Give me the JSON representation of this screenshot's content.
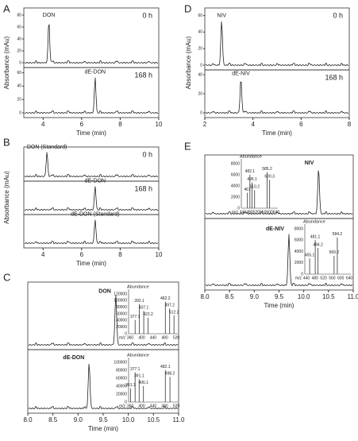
{
  "panels": [
    {
      "label": "A",
      "y_label": "Absorbance (mAu)",
      "x_label": "Time (min)",
      "x_ticks": [
        "4",
        "6",
        "8",
        "10"
      ],
      "traces": [
        {
          "time": "0 h",
          "peak": "DON",
          "y_ticks": [
            "0",
            "20",
            "40",
            "60",
            "80"
          ]
        },
        {
          "time": "168 h",
          "peak": "dE-DON",
          "y_ticks": [
            "0",
            "20",
            "40",
            "60"
          ]
        }
      ]
    },
    {
      "label": "B",
      "y_label": "Absorbance (mAu)",
      "x_label": "Time (min)",
      "x_ticks": [
        "4",
        "6",
        "8",
        "10"
      ],
      "traces": [
        {
          "time": "0 h",
          "peak": "DON (Standard)"
        },
        {
          "time": "168 h",
          "peak": "dE-DON"
        },
        {
          "peak": "dE-DON (Standard)"
        }
      ]
    },
    {
      "label": "C",
      "x_label": "Time (min)",
      "x_ticks": [
        "8.0",
        "8.5",
        "9.0",
        "9.5",
        "10.0",
        "10.5",
        "11.0"
      ],
      "traces": [
        {
          "peak": "DON",
          "inset": {
            "y_label": "Abundance",
            "x_label": "m/z",
            "y_ticks": [
              "0",
              "20000",
              "40000",
              "60000",
              "80000",
              "100000",
              "120000"
            ],
            "x_ticks": [
              "360",
              "400",
              "440",
              "480",
              "520"
            ],
            "peaks": [
              "377.1",
              "392.1",
              "407.1",
              "422.2",
              "482.2",
              "497.2",
              "512.2"
            ]
          }
        },
        {
          "peak": "dE-DON",
          "inset": {
            "y_label": "Abundance",
            "x_label": "m/z",
            "y_ticks": [
              "0",
              "20000",
              "40000",
              "60000",
              "80000",
              "100000"
            ],
            "x_ticks": [
              "360",
              "400",
              "440",
              "480",
              "520"
            ],
            "peaks": [
              "361.1",
              "377.1",
              "391.1",
              "406.1",
              "482.1",
              "498.2"
            ]
          }
        }
      ]
    },
    {
      "label": "D",
      "y_label": "Absorbance (mAu)",
      "x_label": "Time (min)",
      "x_ticks": [
        "2",
        "4",
        "6",
        "8"
      ],
      "traces": [
        {
          "time": "0 h",
          "peak": "NIV",
          "y_ticks": [
            "0",
            "20",
            "40",
            "60"
          ]
        },
        {
          "time": "168 h",
          "peak": "dE-NIV",
          "y_ticks": [
            "0",
            "20",
            "40"
          ]
        }
      ]
    },
    {
      "label": "E",
      "x_label": "Time (min)",
      "x_ticks": [
        "8.0",
        "8.5",
        "9.0",
        "9.5",
        "10.0",
        "10.5",
        "11.0"
      ],
      "traces": [
        {
          "peak": "NIV",
          "inset": {
            "y_label": "Abundance",
            "x_label": "m/z",
            "y_ticks": [
              "0",
              "2000",
              "4000",
              "6000",
              "8000"
            ],
            "x_ticks": [
              "440",
              "480",
              "520",
              "560",
              "600",
              "640"
            ],
            "peaks": [
              "467",
              "482.1",
              "495.1",
              "510.2",
              "585.2",
              "600.3"
            ]
          }
        },
        {
          "peak": "dE-NIV",
          "inset": {
            "y_label": "Abundance",
            "x_label": "m/z",
            "y_ticks": [
              "0",
              "2000",
              "4000",
              "6000",
              "8000"
            ],
            "x_ticks": [
              "440",
              "480",
              "520",
              "560",
              "600",
              "640"
            ],
            "peaks": [
              "455.1",
              "481.1",
              "494.2",
              "569.2",
              "584.2"
            ]
          }
        }
      ]
    }
  ]
}
